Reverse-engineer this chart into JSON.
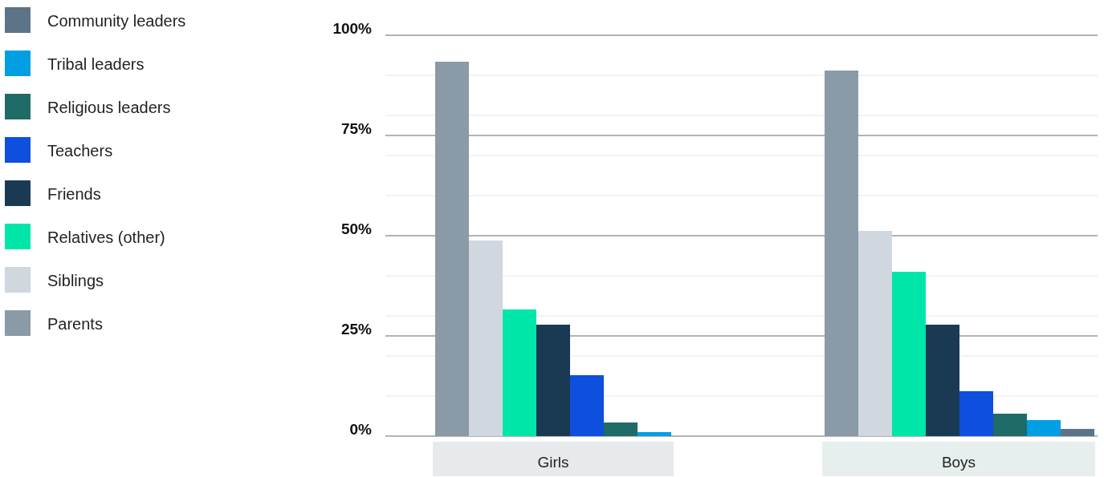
{
  "chart_data": {
    "type": "bar",
    "categories": [
      "Girls",
      "Boys"
    ],
    "series": [
      {
        "name": "Community leaders",
        "color": "#5d7388",
        "values": [
          null,
          1.8
        ]
      },
      {
        "name": "Tribal leaders",
        "color": "#009fe3",
        "values": [
          1,
          4
        ]
      },
      {
        "name": "Religious leaders",
        "color": "#1f6b68",
        "values": [
          3.4,
          5.6
        ]
      },
      {
        "name": "Teachers",
        "color": "#0e4fde",
        "values": [
          15.2,
          11.2
        ]
      },
      {
        "name": "Friends",
        "color": "#1a3a54",
        "values": [
          27.8,
          27.8
        ]
      },
      {
        "name": "Relatives (other)",
        "color": "#00e6a8",
        "values": [
          31.6,
          41
        ]
      },
      {
        "name": "Siblings",
        "color": "#d0d7df",
        "values": [
          48.8,
          51.2
        ]
      },
      {
        "name": "Parents",
        "color": "#8a9aa7",
        "values": [
          93.4,
          91.2
        ]
      }
    ],
    "ylim": [
      0,
      100
    ],
    "yticks": [
      {
        "value": 0,
        "label": "0%"
      },
      {
        "value": 10,
        "label": null
      },
      {
        "value": 20,
        "label": null
      },
      {
        "value": 25,
        "label": "25%"
      },
      {
        "value": 30,
        "label": null
      },
      {
        "value": 40,
        "label": null
      },
      {
        "value": 50,
        "label": "50%"
      },
      {
        "value": 60,
        "label": null
      },
      {
        "value": 70,
        "label": null
      },
      {
        "value": 75,
        "label": "75%"
      },
      {
        "value": 80,
        "label": null
      },
      {
        "value": 90,
        "label": null
      },
      {
        "value": 100,
        "label": "100%"
      }
    ],
    "grid": true,
    "legend": "left"
  }
}
